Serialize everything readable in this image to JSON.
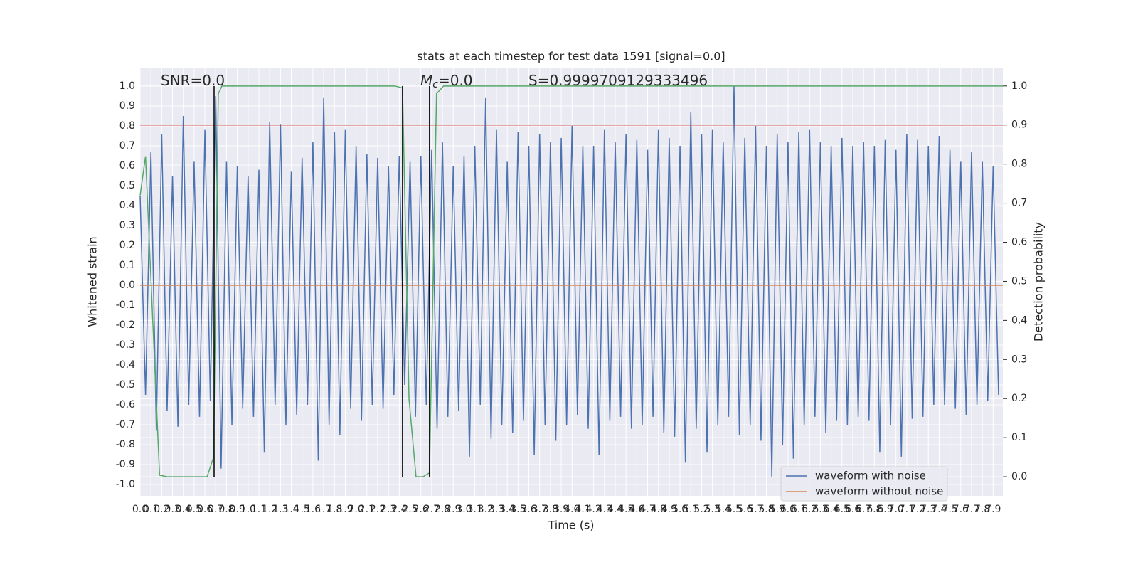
{
  "chart_data": {
    "type": "line",
    "title": "stats at each timestep for test data 1591 [signal=0.0]",
    "x_label": "Time (s)",
    "y_label": "Whitened strain",
    "y2_label": "Detection probability",
    "grid": true,
    "legend": "lower right",
    "xlim": [
      0,
      7.99
    ],
    "ylim": [
      -1.057,
      1.093
    ],
    "y2lim": [
      -0.049,
      1.047
    ],
    "xticks": [
      {
        "value": 0,
        "label": "0.0"
      },
      0.1,
      0.2,
      0.3,
      0.4,
      0.5,
      0.6,
      0.7,
      0.8,
      0.9,
      {
        "value": 1,
        "label": "1.0"
      },
      1.1,
      1.2,
      1.3,
      1.4,
      1.5,
      1.6,
      1.7,
      1.8,
      1.9,
      {
        "value": 2,
        "label": "2.0"
      },
      2.1,
      2.2,
      2.3,
      2.4,
      2.5,
      2.6,
      2.7,
      2.8,
      2.9,
      {
        "value": 3,
        "label": "3.0"
      },
      3.1,
      3.2,
      3.3,
      3.4,
      3.5,
      3.6,
      3.7,
      3.8,
      3.9,
      {
        "value": 4,
        "label": "4.0"
      },
      4.1,
      4.2,
      4.3,
      4.4,
      4.5,
      4.6,
      4.7,
      4.8,
      4.9,
      {
        "value": 5,
        "label": "5.0"
      },
      5.1,
      5.2,
      5.3,
      5.4,
      5.5,
      5.6,
      5.7,
      5.8,
      5.9,
      {
        "value": 6,
        "label": "6.0"
      },
      6.1,
      6.2,
      6.3,
      6.4,
      6.5,
      6.6,
      6.7,
      6.8,
      6.9,
      {
        "value": 7,
        "label": "7.0"
      },
      7.1,
      7.2,
      7.3,
      7.4,
      7.5,
      7.6,
      7.7,
      7.8,
      7.9
    ],
    "yticks": [
      {
        "value": -1,
        "label": "-1.0"
      },
      -0.9,
      -0.8,
      -0.7,
      -0.6,
      -0.5,
      -0.4,
      -0.3,
      -0.2,
      -0.1,
      {
        "value": 0,
        "label": "0.0"
      },
      0.1,
      0.2,
      0.3,
      0.4,
      0.5,
      0.6,
      0.7,
      0.8,
      0.9,
      {
        "value": 1,
        "label": "1.0"
      }
    ],
    "y2ticks": [
      {
        "value": 0,
        "label": "0.0"
      },
      0.1,
      0.2,
      0.3,
      0.4,
      0.5,
      0.6,
      0.7,
      0.8,
      0.9,
      {
        "value": 1,
        "label": "1.0"
      }
    ],
    "series": [
      {
        "name": "waveform with noise",
        "color": "#4c72b0",
        "x": [
          0,
          0.05,
          0.1,
          0.15,
          0.2,
          0.25,
          0.3,
          0.35,
          0.4,
          0.45,
          0.5,
          0.55,
          0.6,
          0.65,
          0.7,
          0.75,
          0.8,
          0.85,
          0.9,
          0.95,
          1,
          1.05,
          1.1,
          1.15,
          1.2,
          1.25,
          1.3,
          1.35,
          1.4,
          1.45,
          1.5,
          1.55,
          1.6,
          1.65,
          1.7,
          1.75,
          1.8,
          1.85,
          1.9,
          1.95,
          2,
          2.05,
          2.1,
          2.15,
          2.2,
          2.25,
          2.3,
          2.35,
          2.4,
          2.45,
          2.5,
          2.55,
          2.6,
          2.65,
          2.7,
          2.75,
          2.8,
          2.85,
          2.9,
          2.95,
          3,
          3.05,
          3.1,
          3.15,
          3.2,
          3.25,
          3.3,
          3.35,
          3.4,
          3.45,
          3.5,
          3.55,
          3.6,
          3.65,
          3.7,
          3.75,
          3.8,
          3.85,
          3.9,
          3.95,
          4,
          4.05,
          4.1,
          4.15,
          4.2,
          4.25,
          4.3,
          4.35,
          4.4,
          4.45,
          4.5,
          4.55,
          4.6,
          4.65,
          4.7,
          4.75,
          4.8,
          4.85,
          4.9,
          4.95,
          5,
          5.05,
          5.1,
          5.15,
          5.2,
          5.25,
          5.3,
          5.35,
          5.4,
          5.45,
          5.5,
          5.55,
          5.6,
          5.65,
          5.7,
          5.75,
          5.8,
          5.85,
          5.9,
          5.95,
          6,
          6.05,
          6.1,
          6.15,
          6.2,
          6.25,
          6.3,
          6.35,
          6.4,
          6.45,
          6.5,
          6.55,
          6.6,
          6.65,
          6.7,
          6.75,
          6.8,
          6.85,
          6.9,
          6.95,
          7,
          7.05,
          7.1,
          7.15,
          7.2,
          7.25,
          7.3,
          7.35,
          7.4,
          7.45,
          7.5,
          7.55,
          7.6,
          7.65,
          7.7,
          7.75,
          7.8,
          7.85,
          7.9,
          7.95
        ],
        "values": [
          0.45,
          -0.55,
          0.67,
          -0.73,
          0.76,
          -0.63,
          0.55,
          -0.71,
          0.85,
          -0.6,
          0.62,
          -0.66,
          0.78,
          -0.58,
          0.95,
          -0.92,
          0.62,
          -0.7,
          0.6,
          -0.62,
          0.55,
          -0.66,
          0.58,
          -0.84,
          0.82,
          -0.6,
          0.81,
          -0.7,
          0.57,
          -0.65,
          0.64,
          -0.6,
          0.72,
          -0.88,
          0.94,
          -0.7,
          0.77,
          -0.75,
          0.78,
          -0.62,
          0.7,
          -0.68,
          0.66,
          -0.6,
          0.64,
          -0.62,
          0.6,
          -0.55,
          0.65,
          -0.5,
          0.62,
          -0.66,
          0.65,
          -0.6,
          0.68,
          -0.72,
          0.72,
          -0.66,
          0.6,
          -0.63,
          0.65,
          -0.86,
          0.7,
          -0.6,
          0.94,
          -0.77,
          0.78,
          -0.7,
          0.62,
          -0.74,
          0.77,
          -0.68,
          0.7,
          -0.85,
          0.76,
          -0.7,
          0.72,
          -0.78,
          0.74,
          -0.7,
          0.8,
          -0.65,
          0.7,
          -0.72,
          0.7,
          -0.85,
          0.78,
          -0.68,
          0.72,
          -0.66,
          0.76,
          -0.72,
          0.73,
          -0.7,
          0.68,
          -0.66,
          0.78,
          -0.74,
          0.74,
          -0.76,
          0.7,
          -0.89,
          0.87,
          -0.72,
          0.76,
          -0.84,
          0.78,
          -0.7,
          0.72,
          -0.66,
          1.0,
          -0.75,
          0.74,
          -0.7,
          0.8,
          -0.78,
          0.7,
          -0.96,
          0.76,
          -0.8,
          0.72,
          -0.87,
          0.77,
          -0.7,
          0.78,
          -0.66,
          0.72,
          -0.74,
          0.7,
          -0.68,
          0.74,
          -0.7,
          0.7,
          -0.66,
          0.72,
          -0.68,
          0.7,
          -0.84,
          0.73,
          -0.7,
          0.68,
          -0.86,
          0.76,
          -0.67,
          0.73,
          -0.66,
          0.7,
          -0.6,
          0.75,
          -0.6,
          0.68,
          -0.62,
          0.62,
          -0.65,
          0.67,
          -0.6,
          0.62,
          -0.58,
          0.6,
          -0.55
        ]
      },
      {
        "name": "waveform without noise",
        "color": "#dd8452",
        "x": [
          0,
          7.99
        ],
        "values": [
          0,
          0
        ]
      }
    ],
    "probability": {
      "color": "#55a868",
      "x": [
        0,
        0.05,
        0.18,
        0.25,
        0.62,
        0.68,
        0.724,
        0.757,
        2.36,
        2.43,
        2.49,
        2.555,
        2.62,
        2.68,
        2.745,
        2.81,
        7.99
      ],
      "values": [
        0.72,
        0.82,
        0.004,
        0,
        0,
        0.05,
        0.98,
        1,
        1,
        0.995,
        0.2,
        0,
        0,
        0.01,
        0.98,
        1,
        1
      ]
    },
    "threshold": {
      "value": 0.9,
      "color": "#c44e52"
    },
    "vlines": {
      "x": [
        0.685,
        2.43,
        2.68
      ],
      "ymin": 0,
      "ymax": 1,
      "color": "#000000"
    },
    "annotations": [
      {
        "text": "SNR=0.0"
      },
      {
        "text": "M",
        "subscript": "c",
        "suffix": "=0.0"
      },
      {
        "text": "S=0.9999709129333496"
      }
    ]
  }
}
